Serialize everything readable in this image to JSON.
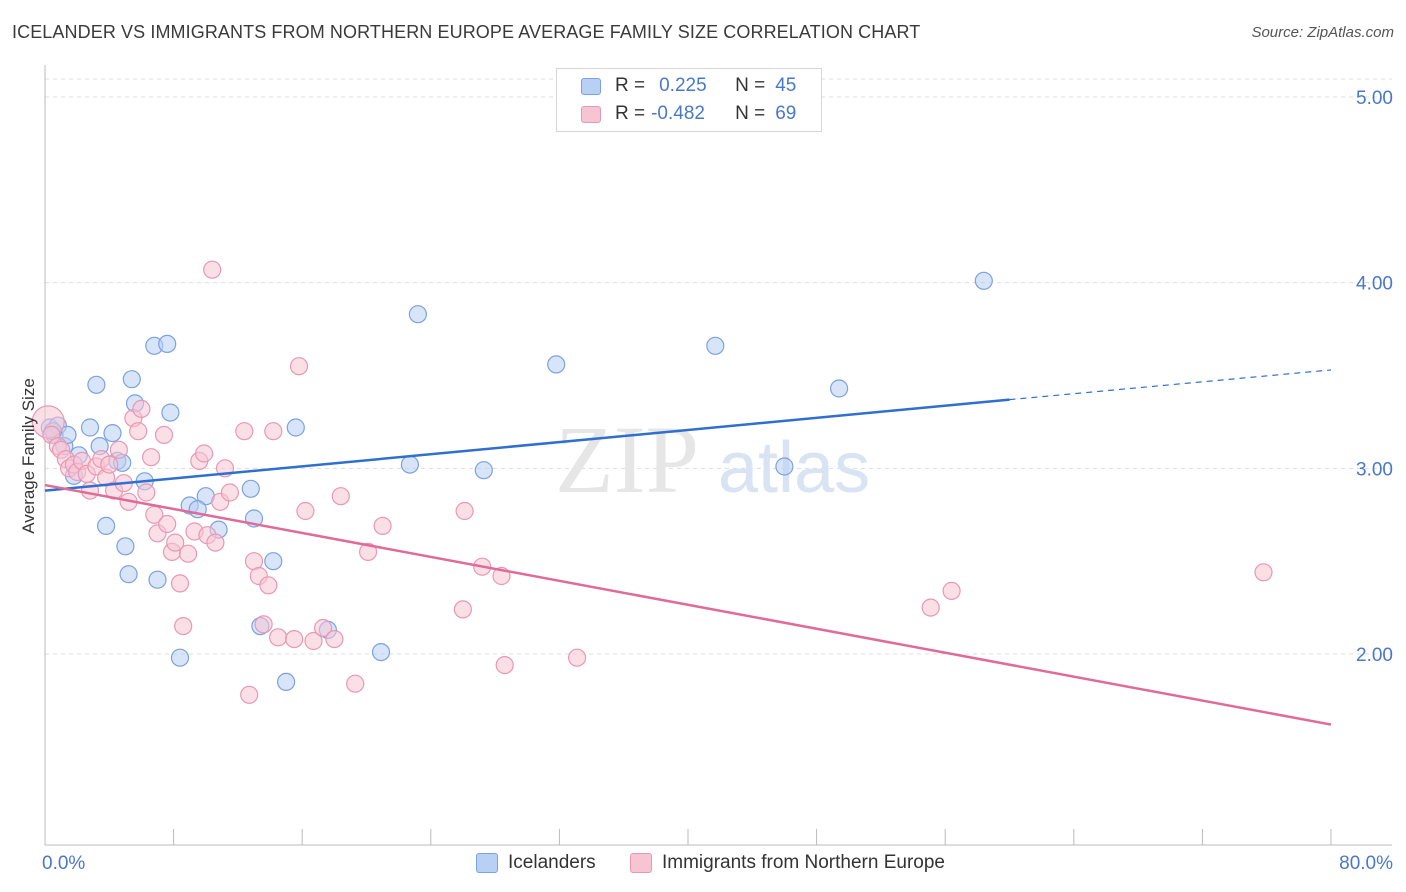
{
  "title": "ICELANDER VS IMMIGRANTS FROM NORTHERN EUROPE AVERAGE FAMILY SIZE CORRELATION CHART",
  "source": "Source: ZipAtlas.com",
  "watermark": {
    "zip": "ZIP",
    "atlas": "atlas"
  },
  "legend": {
    "r_label": "R =",
    "n_label": "N =",
    "series1": {
      "r": "0.225",
      "n": "45"
    },
    "series2": {
      "r": "-0.482",
      "n": "69"
    }
  },
  "colors": {
    "blue_fill": "#b8d0f4",
    "blue_stroke": "#7aa2e0",
    "blue_line": "#2f6fd0",
    "pink_fill": "#f7c4d4",
    "pink_stroke": "#e898b4",
    "pink_line": "#e06a98",
    "axis_text": "#4a78c8"
  },
  "chart_data": {
    "type": "scatter",
    "title": "ICELANDER VS IMMIGRANTS FROM NORTHERN EUROPE AVERAGE FAMILY SIZE CORRELATION CHART",
    "xlabel": "",
    "ylabel": "Average Family Size",
    "xlim": [
      0,
      80
    ],
    "ylim": [
      1.0,
      5.1
    ],
    "x_tick_labels": [
      "0.0%",
      "80.0%"
    ],
    "y_ticks": [
      2.0,
      3.0,
      4.0,
      5.0
    ],
    "y_tick_labels": [
      "2.00",
      "3.00",
      "4.00",
      "5.00"
    ],
    "series": [
      {
        "name": "Icelanders",
        "color": "#b8d0f4",
        "points": [
          [
            0.3,
            3.22
          ],
          [
            0.6,
            3.18
          ],
          [
            0.8,
            3.23
          ],
          [
            1.2,
            3.12
          ],
          [
            1.4,
            3.18
          ],
          [
            1.8,
            2.96
          ],
          [
            2.1,
            3.07
          ],
          [
            2.8,
            3.22
          ],
          [
            3.2,
            3.45
          ],
          [
            3.4,
            3.12
          ],
          [
            3.8,
            2.69
          ],
          [
            4.2,
            3.19
          ],
          [
            4.5,
            3.04
          ],
          [
            4.8,
            3.03
          ],
          [
            5.0,
            2.58
          ],
          [
            5.2,
            2.43
          ],
          [
            5.4,
            3.48
          ],
          [
            5.6,
            3.35
          ],
          [
            6.2,
            2.93
          ],
          [
            6.8,
            3.66
          ],
          [
            7.0,
            2.4
          ],
          [
            7.6,
            3.67
          ],
          [
            7.8,
            3.3
          ],
          [
            8.4,
            1.98
          ],
          [
            9.0,
            2.8
          ],
          [
            10.0,
            2.85
          ],
          [
            10.8,
            2.67
          ],
          [
            12.8,
            2.89
          ],
          [
            13.0,
            2.73
          ],
          [
            13.4,
            2.15
          ],
          [
            14.2,
            2.5
          ],
          [
            15.0,
            1.85
          ],
          [
            15.6,
            3.22
          ],
          [
            17.6,
            2.13
          ],
          [
            20.9,
            2.01
          ],
          [
            22.7,
            3.02
          ],
          [
            23.2,
            3.83
          ],
          [
            27.3,
            2.99
          ],
          [
            31.8,
            3.56
          ],
          [
            41.7,
            3.66
          ],
          [
            46.0,
            3.01
          ],
          [
            49.4,
            3.43
          ],
          [
            58.4,
            4.01
          ],
          [
            0.5,
            3.2
          ],
          [
            9.5,
            2.78
          ]
        ]
      },
      {
        "name": "Immigrants from Northern Europe",
        "color": "#f7c4d4",
        "points": [
          [
            0.2,
            3.25
          ],
          [
            0.4,
            3.18
          ],
          [
            0.8,
            3.12
          ],
          [
            1.0,
            3.1
          ],
          [
            1.3,
            3.05
          ],
          [
            1.5,
            3.0
          ],
          [
            1.8,
            3.02
          ],
          [
            2.0,
            2.98
          ],
          [
            2.3,
            3.04
          ],
          [
            2.6,
            2.97
          ],
          [
            2.8,
            2.88
          ],
          [
            3.2,
            3.01
          ],
          [
            3.5,
            3.05
          ],
          [
            3.8,
            2.95
          ],
          [
            4.0,
            3.02
          ],
          [
            4.3,
            2.88
          ],
          [
            4.6,
            3.1
          ],
          [
            4.9,
            2.92
          ],
          [
            5.2,
            2.82
          ],
          [
            5.5,
            3.27
          ],
          [
            5.8,
            3.2
          ],
          [
            6.0,
            3.32
          ],
          [
            6.3,
            2.87
          ],
          [
            6.6,
            3.06
          ],
          [
            6.8,
            2.75
          ],
          [
            7.0,
            2.65
          ],
          [
            7.4,
            3.18
          ],
          [
            7.6,
            2.7
          ],
          [
            7.9,
            2.55
          ],
          [
            8.1,
            2.6
          ],
          [
            8.4,
            2.38
          ],
          [
            8.6,
            2.15
          ],
          [
            8.9,
            2.54
          ],
          [
            9.3,
            2.66
          ],
          [
            9.6,
            3.04
          ],
          [
            9.9,
            3.08
          ],
          [
            10.1,
            2.64
          ],
          [
            10.4,
            4.07
          ],
          [
            10.6,
            2.6
          ],
          [
            10.9,
            2.82
          ],
          [
            11.2,
            3.0
          ],
          [
            11.5,
            2.87
          ],
          [
            12.4,
            3.2
          ],
          [
            12.7,
            1.78
          ],
          [
            13.0,
            2.5
          ],
          [
            13.3,
            2.42
          ],
          [
            13.6,
            2.16
          ],
          [
            13.9,
            2.37
          ],
          [
            14.2,
            3.2
          ],
          [
            14.5,
            2.09
          ],
          [
            15.5,
            2.08
          ],
          [
            15.8,
            3.55
          ],
          [
            16.2,
            2.77
          ],
          [
            16.7,
            2.07
          ],
          [
            17.3,
            2.14
          ],
          [
            18.0,
            2.08
          ],
          [
            18.4,
            2.85
          ],
          [
            19.3,
            1.84
          ],
          [
            20.1,
            2.55
          ],
          [
            21.0,
            2.69
          ],
          [
            26.0,
            2.24
          ],
          [
            26.1,
            2.77
          ],
          [
            27.2,
            2.47
          ],
          [
            28.4,
            2.42
          ],
          [
            28.6,
            1.94
          ],
          [
            33.1,
            1.98
          ],
          [
            55.1,
            2.25
          ],
          [
            56.4,
            2.34
          ],
          [
            75.8,
            2.44
          ]
        ]
      }
    ],
    "trend_lines": [
      {
        "series": "Icelanders",
        "x": [
          0,
          60
        ],
        "y": [
          2.88,
          3.37
        ],
        "dashed_extension_to_x": 80,
        "dashed_extension_y": 3.53
      },
      {
        "series": "Immigrants from Northern Europe",
        "x": [
          0,
          80
        ],
        "y": [
          2.91,
          1.62
        ]
      }
    ],
    "legend_position": "top-center"
  },
  "bottom_legend": {
    "item1": "Icelanders",
    "item2": "Immigrants from Northern Europe"
  }
}
